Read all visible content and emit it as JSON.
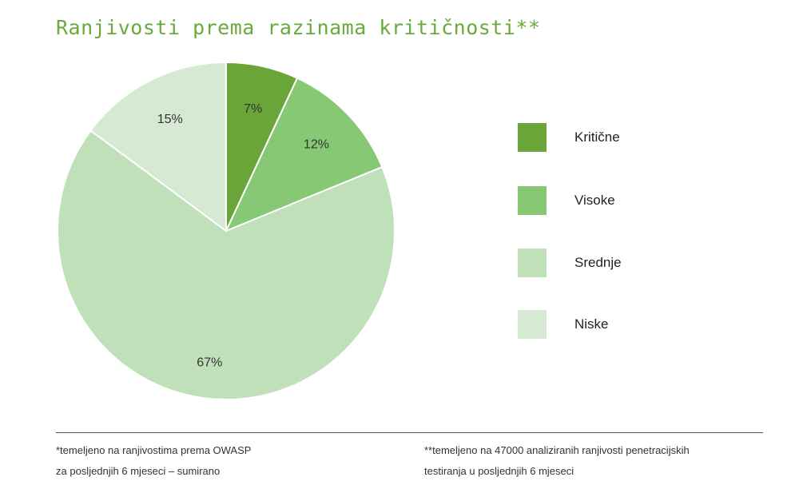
{
  "chart_data": {
    "type": "pie",
    "title": "Ranjivosti prema razinama kritičnosti**",
    "slices": [
      {
        "label": "Kritične",
        "value": 7,
        "value_label": "7%",
        "color": "#6aa539"
      },
      {
        "label": "Visoke",
        "value": 12,
        "value_label": "12%",
        "color": "#87c874"
      },
      {
        "label": "Srednje",
        "value": 67,
        "value_label": "67%",
        "color": "#bfe0b8"
      },
      {
        "label": "Niske",
        "value": 15,
        "value_label": "15%",
        "color": "#d6e9d3"
      }
    ],
    "legend_position": "right"
  },
  "footnotes": {
    "left": {
      "line1": "*temeljeno na ranjivostima prema OWASP",
      "line2": "za posljednjih 6 mjeseci – sumirano"
    },
    "right": {
      "line1": "**temeljeno na 47000 analiziranih ranjivosti penetracijskih",
      "line2": "testiranja u posljednjih 6 mjeseci"
    }
  }
}
